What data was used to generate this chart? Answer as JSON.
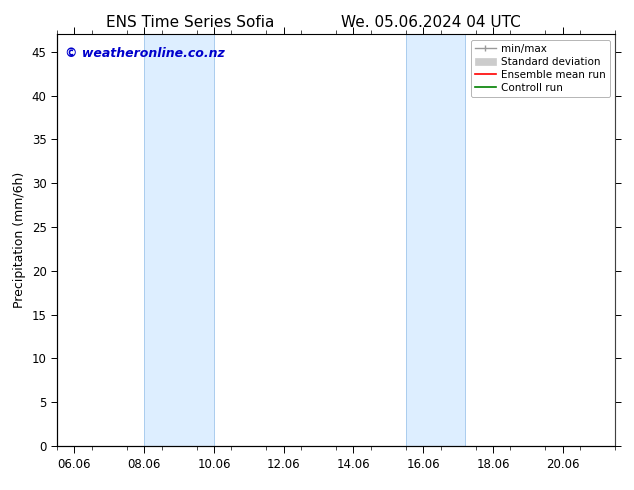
{
  "title_left": "ENS Time Series Sofia",
  "title_right": "We. 05.06.2024 04 UTC",
  "ylabel": "Precipitation (mm/6h)",
  "watermark": "© weatheronline.co.nz",
  "watermark_color": "#0000cc",
  "xlim_start": 5.5,
  "xlim_end": 21.2,
  "ylim": [
    0,
    47
  ],
  "yticks": [
    0,
    5,
    10,
    15,
    20,
    25,
    30,
    35,
    40,
    45
  ],
  "xtick_labels": [
    "06.06",
    "08.06",
    "10.06",
    "12.06",
    "14.06",
    "16.06",
    "18.06",
    "20.06"
  ],
  "xtick_positions": [
    6,
    8,
    10,
    12,
    14,
    16,
    18,
    20
  ],
  "shaded_regions": [
    {
      "xmin": 8.0,
      "xmax": 10.0,
      "color": "#ddeeff"
    },
    {
      "xmin": 15.5,
      "xmax": 17.2,
      "color": "#ddeeff"
    }
  ],
  "vertical_lines": [
    {
      "x": 8.0,
      "color": "#aaccee",
      "lw": 0.7
    },
    {
      "x": 10.0,
      "color": "#aaccee",
      "lw": 0.7
    },
    {
      "x": 15.5,
      "color": "#aaccee",
      "lw": 0.7
    },
    {
      "x": 17.2,
      "color": "#aaccee",
      "lw": 0.7
    }
  ],
  "legend_items": [
    {
      "label": "min/max",
      "color": "#999999",
      "lw": 1.0,
      "style": "minmax"
    },
    {
      "label": "Standard deviation",
      "color": "#cccccc",
      "lw": 5,
      "style": "fill"
    },
    {
      "label": "Ensemble mean run",
      "color": "red",
      "lw": 1.2,
      "style": "line"
    },
    {
      "label": "Controll run",
      "color": "green",
      "lw": 1.2,
      "style": "line"
    }
  ],
  "bg_color": "#ffffff",
  "plot_bg_color": "#ffffff",
  "title_fontsize": 11,
  "tick_fontsize": 8.5,
  "ylabel_fontsize": 9,
  "watermark_fontsize": 9
}
